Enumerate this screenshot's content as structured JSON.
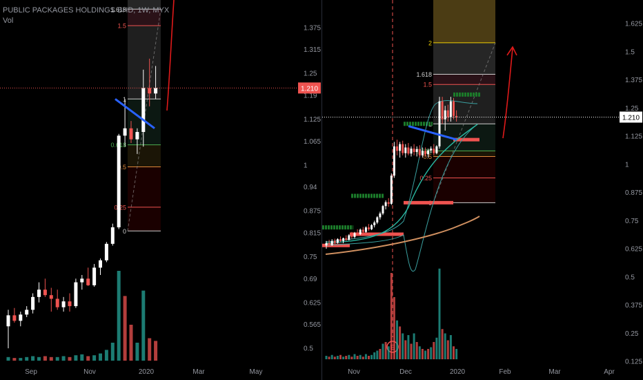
{
  "header": {
    "symbol_line": "PUBLIC PACKAGES HOLDINGS BHD, 1W, MYX",
    "volume_label": "Vol"
  },
  "colors": {
    "background": "#000000",
    "up": "#ffffff",
    "down": "#ef5350",
    "vol_up": "#26a69a",
    "vol_down": "#ef5350",
    "price_line": "#ef5350",
    "blue_trend": "#2962ff",
    "arrow": "#e01a1a"
  },
  "chart_data": [
    {
      "type": "candlestick",
      "pane": "left",
      "title": "PUBLIC PACKAGES HOLDINGS BHD, 1W, MYX",
      "x_ticks": [
        "Sep",
        "Nov",
        "2020",
        "Mar",
        "May"
      ],
      "y_ticks": [
        1.375,
        1.315,
        1.25,
        1.19,
        1.125,
        1.065,
        1.0,
        0.94,
        0.875,
        0.815,
        0.75,
        0.69,
        0.625,
        0.565,
        0.5
      ],
      "ylim": [
        0.455,
        1.45
      ],
      "last_price": "1.210",
      "candles": [
        {
          "o": 0.56,
          "h": 0.605,
          "l": 0.5,
          "c": 0.59
        },
        {
          "o": 0.59,
          "h": 0.61,
          "l": 0.57,
          "c": 0.575
        },
        {
          "o": 0.575,
          "h": 0.6,
          "l": 0.56,
          "c": 0.592
        },
        {
          "o": 0.592,
          "h": 0.615,
          "l": 0.585,
          "c": 0.605
        },
        {
          "o": 0.605,
          "h": 0.65,
          "l": 0.595,
          "c": 0.64
        },
        {
          "o": 0.64,
          "h": 0.68,
          "l": 0.625,
          "c": 0.66
        },
        {
          "o": 0.66,
          "h": 0.69,
          "l": 0.64,
          "c": 0.645
        },
        {
          "o": 0.645,
          "h": 0.665,
          "l": 0.6,
          "c": 0.635
        },
        {
          "o": 0.635,
          "h": 0.66,
          "l": 0.605,
          "c": 0.612
        },
        {
          "o": 0.612,
          "h": 0.64,
          "l": 0.6,
          "c": 0.628
        },
        {
          "o": 0.628,
          "h": 0.65,
          "l": 0.6,
          "c": 0.615
        },
        {
          "o": 0.615,
          "h": 0.69,
          "l": 0.61,
          "c": 0.68
        },
        {
          "o": 0.68,
          "h": 0.7,
          "l": 0.66,
          "c": 0.69
        },
        {
          "o": 0.69,
          "h": 0.72,
          "l": 0.67,
          "c": 0.672
        },
        {
          "o": 0.672,
          "h": 0.73,
          "l": 0.668,
          "c": 0.72
        },
        {
          "o": 0.72,
          "h": 0.745,
          "l": 0.7,
          "c": 0.74
        },
        {
          "o": 0.74,
          "h": 0.79,
          "l": 0.735,
          "c": 0.785
        },
        {
          "o": 0.785,
          "h": 0.84,
          "l": 0.78,
          "c": 0.83
        },
        {
          "o": 0.83,
          "h": 1.085,
          "l": 0.825,
          "c": 1.08
        },
        {
          "o": 1.08,
          "h": 1.18,
          "l": 1.05,
          "c": 1.1
        },
        {
          "o": 1.1,
          "h": 1.12,
          "l": 1.06,
          "c": 1.07
        },
        {
          "o": 1.07,
          "h": 1.1,
          "l": 1.03,
          "c": 1.09
        },
        {
          "o": 1.09,
          "h": 1.26,
          "l": 1.05,
          "c": 1.21
        },
        {
          "o": 1.21,
          "h": 1.29,
          "l": 1.16,
          "c": 1.195
        },
        {
          "o": 1.195,
          "h": 1.27,
          "l": 1.18,
          "c": 1.21
        }
      ],
      "volume": [
        {
          "v": 0.04,
          "up": true
        },
        {
          "v": 0.03,
          "up": false
        },
        {
          "v": 0.03,
          "up": true
        },
        {
          "v": 0.04,
          "up": true
        },
        {
          "v": 0.05,
          "up": true
        },
        {
          "v": 0.04,
          "up": true
        },
        {
          "v": 0.05,
          "up": false
        },
        {
          "v": 0.04,
          "up": false
        },
        {
          "v": 0.04,
          "up": true
        },
        {
          "v": 0.05,
          "up": true
        },
        {
          "v": 0.04,
          "up": false
        },
        {
          "v": 0.06,
          "up": true
        },
        {
          "v": 0.07,
          "up": true
        },
        {
          "v": 0.05,
          "up": false
        },
        {
          "v": 0.06,
          "up": true
        },
        {
          "v": 0.08,
          "up": true
        },
        {
          "v": 0.12,
          "up": true
        },
        {
          "v": 0.2,
          "up": true
        },
        {
          "v": 1.0,
          "up": true
        },
        {
          "v": 0.72,
          "up": false
        },
        {
          "v": 0.4,
          "up": false
        },
        {
          "v": 0.2,
          "up": true
        },
        {
          "v": 0.78,
          "up": true
        },
        {
          "v": 0.25,
          "up": false
        },
        {
          "v": 0.22,
          "up": false
        }
      ],
      "fib_levels": [
        {
          "label": "0",
          "price": 0.82
        },
        {
          "label": "0.25",
          "price": 0.885
        },
        {
          "label": "0.5",
          "price": 0.995
        },
        {
          "label": "0.618",
          "price": 1.055
        },
        {
          "label": "1",
          "price": 1.18
        },
        {
          "label": "1.5",
          "price": 1.38
        },
        {
          "label": "1.618",
          "price": 1.425
        }
      ],
      "blue_trend": [
        {
          "price": 1.18
        },
        {
          "price": 1.1
        }
      ]
    },
    {
      "type": "candlestick",
      "pane": "right",
      "x_ticks": [
        "Nov",
        "Dec",
        "2020",
        "Feb",
        "Mar",
        "Apr"
      ],
      "y_ticks": [
        1.625,
        1.5,
        1.375,
        1.25,
        1.125,
        1.0,
        0.875,
        0.75,
        0.625,
        0.5,
        0.375,
        0.25,
        0.125
      ],
      "ylim": [
        0.11,
        1.73
      ],
      "last_price": "1.210",
      "earnings_marker": "E",
      "candles": [
        {
          "o": 0.64,
          "h": 0.66,
          "l": 0.625,
          "c": 0.65
        },
        {
          "o": 0.65,
          "h": 0.665,
          "l": 0.635,
          "c": 0.642
        },
        {
          "o": 0.642,
          "h": 0.668,
          "l": 0.638,
          "c": 0.66
        },
        {
          "o": 0.66,
          "h": 0.67,
          "l": 0.645,
          "c": 0.652
        },
        {
          "o": 0.652,
          "h": 0.672,
          "l": 0.648,
          "c": 0.668
        },
        {
          "o": 0.668,
          "h": 0.68,
          "l": 0.655,
          "c": 0.66
        },
        {
          "o": 0.66,
          "h": 0.675,
          "l": 0.65,
          "c": 0.672
        },
        {
          "o": 0.672,
          "h": 0.685,
          "l": 0.66,
          "c": 0.665
        },
        {
          "o": 0.665,
          "h": 0.69,
          "l": 0.662,
          "c": 0.685
        },
        {
          "o": 0.685,
          "h": 0.7,
          "l": 0.67,
          "c": 0.678
        },
        {
          "o": 0.678,
          "h": 0.7,
          "l": 0.672,
          "c": 0.695
        },
        {
          "o": 0.695,
          "h": 0.712,
          "l": 0.688,
          "c": 0.69
        },
        {
          "o": 0.69,
          "h": 0.715,
          "l": 0.686,
          "c": 0.71
        },
        {
          "o": 0.71,
          "h": 0.722,
          "l": 0.695,
          "c": 0.7
        },
        {
          "o": 0.7,
          "h": 0.725,
          "l": 0.696,
          "c": 0.72
        },
        {
          "o": 0.72,
          "h": 0.735,
          "l": 0.705,
          "c": 0.712
        },
        {
          "o": 0.712,
          "h": 0.735,
          "l": 0.708,
          "c": 0.73
        },
        {
          "o": 0.73,
          "h": 0.75,
          "l": 0.72,
          "c": 0.742
        },
        {
          "o": 0.742,
          "h": 0.77,
          "l": 0.735,
          "c": 0.765
        },
        {
          "o": 0.765,
          "h": 0.79,
          "l": 0.755,
          "c": 0.782
        },
        {
          "o": 0.782,
          "h": 0.82,
          "l": 0.775,
          "c": 0.815
        },
        {
          "o": 0.815,
          "h": 0.84,
          "l": 0.8,
          "c": 0.832
        },
        {
          "o": 0.832,
          "h": 0.85,
          "l": 0.812,
          "c": 0.825
        },
        {
          "o": 0.825,
          "h": 0.96,
          "l": 0.82,
          "c": 0.95
        },
        {
          "o": 0.95,
          "h": 1.1,
          "l": 0.94,
          "c": 1.08
        },
        {
          "o": 1.08,
          "h": 1.11,
          "l": 1.04,
          "c": 1.06
        },
        {
          "o": 1.06,
          "h": 1.1,
          "l": 1.03,
          "c": 1.09
        },
        {
          "o": 1.09,
          "h": 1.105,
          "l": 1.04,
          "c": 1.05
        },
        {
          "o": 1.05,
          "h": 1.09,
          "l": 1.03,
          "c": 1.075
        },
        {
          "o": 1.075,
          "h": 1.095,
          "l": 1.04,
          "c": 1.048
        },
        {
          "o": 1.048,
          "h": 1.08,
          "l": 1.035,
          "c": 1.07
        },
        {
          "o": 1.07,
          "h": 1.09,
          "l": 1.04,
          "c": 1.055
        },
        {
          "o": 1.055,
          "h": 1.08,
          "l": 1.035,
          "c": 1.068
        },
        {
          "o": 1.068,
          "h": 1.085,
          "l": 1.03,
          "c": 1.04
        },
        {
          "o": 1.04,
          "h": 1.075,
          "l": 1.03,
          "c": 1.06
        },
        {
          "o": 1.06,
          "h": 1.075,
          "l": 1.035,
          "c": 1.045
        },
        {
          "o": 1.045,
          "h": 1.07,
          "l": 1.03,
          "c": 1.062
        },
        {
          "o": 1.062,
          "h": 1.08,
          "l": 1.05,
          "c": 1.07
        },
        {
          "o": 1.07,
          "h": 1.09,
          "l": 1.04,
          "c": 1.05
        },
        {
          "o": 1.05,
          "h": 1.085,
          "l": 1.045,
          "c": 1.08
        },
        {
          "o": 1.08,
          "h": 1.3,
          "l": 1.07,
          "c": 1.28
        },
        {
          "o": 1.28,
          "h": 1.3,
          "l": 1.18,
          "c": 1.2
        },
        {
          "o": 1.2,
          "h": 1.26,
          "l": 1.15,
          "c": 1.24
        },
        {
          "o": 1.24,
          "h": 1.265,
          "l": 1.19,
          "c": 1.21
        },
        {
          "o": 1.21,
          "h": 1.3,
          "l": 1.19,
          "c": 1.28
        },
        {
          "o": 1.28,
          "h": 1.295,
          "l": 1.2,
          "c": 1.215
        },
        {
          "o": 1.215,
          "h": 1.24,
          "l": 1.19,
          "c": 1.21
        }
      ],
      "volume": [
        {
          "v": 0.04,
          "up": true
        },
        {
          "v": 0.03,
          "up": false
        },
        {
          "v": 0.05,
          "up": true
        },
        {
          "v": 0.03,
          "up": false
        },
        {
          "v": 0.04,
          "up": true
        },
        {
          "v": 0.05,
          "up": false
        },
        {
          "v": 0.03,
          "up": true
        },
        {
          "v": 0.04,
          "up": false
        },
        {
          "v": 0.05,
          "up": true
        },
        {
          "v": 0.03,
          "up": false
        },
        {
          "v": 0.06,
          "up": true
        },
        {
          "v": 0.04,
          "up": false
        },
        {
          "v": 0.05,
          "up": true
        },
        {
          "v": 0.03,
          "up": false
        },
        {
          "v": 0.06,
          "up": true
        },
        {
          "v": 0.04,
          "up": false
        },
        {
          "v": 0.05,
          "up": true
        },
        {
          "v": 0.08,
          "up": true
        },
        {
          "v": 0.1,
          "up": true
        },
        {
          "v": 0.12,
          "up": false
        },
        {
          "v": 0.18,
          "up": true
        },
        {
          "v": 0.2,
          "up": false
        },
        {
          "v": 0.15,
          "up": true
        },
        {
          "v": 1.0,
          "up": false
        },
        {
          "v": 0.72,
          "up": false
        },
        {
          "v": 0.45,
          "up": true
        },
        {
          "v": 0.38,
          "up": false
        },
        {
          "v": 0.3,
          "up": true
        },
        {
          "v": 0.22,
          "up": false
        },
        {
          "v": 0.28,
          "up": true
        },
        {
          "v": 0.18,
          "up": false
        },
        {
          "v": 0.3,
          "up": true
        },
        {
          "v": 0.2,
          "up": false
        },
        {
          "v": 0.15,
          "up": true
        },
        {
          "v": 0.12,
          "up": false
        },
        {
          "v": 0.1,
          "up": true
        },
        {
          "v": 0.12,
          "up": false
        },
        {
          "v": 0.14,
          "up": true
        },
        {
          "v": 0.2,
          "up": false
        },
        {
          "v": 0.25,
          "up": true
        },
        {
          "v": 1.05,
          "up": true
        },
        {
          "v": 0.35,
          "up": false
        },
        {
          "v": 0.3,
          "up": true
        },
        {
          "v": 0.22,
          "up": false
        },
        {
          "v": 0.28,
          "up": true
        },
        {
          "v": 0.15,
          "up": false
        },
        {
          "v": 0.12,
          "up": true
        }
      ],
      "fib_levels": [
        {
          "label": "0",
          "price": 0.83
        },
        {
          "label": "0.25",
          "price": 0.94
        },
        {
          "label": "0.5",
          "price": 1.035
        },
        {
          "label": "0.618",
          "price": 1.06
        },
        {
          "label": "1",
          "price": 1.18
        },
        {
          "label": "1.5",
          "price": 1.355
        },
        {
          "label": "1.618",
          "price": 1.4
        },
        {
          "label": "2",
          "price": 1.54
        }
      ],
      "blue_trend": [
        {
          "price": 1.17
        },
        {
          "price": 1.11
        }
      ],
      "green_levels": [
        0.72,
        0.86,
        1.18,
        1.31
      ],
      "red_levels": [
        0.64,
        0.69,
        0.83,
        1.11
      ]
    }
  ]
}
